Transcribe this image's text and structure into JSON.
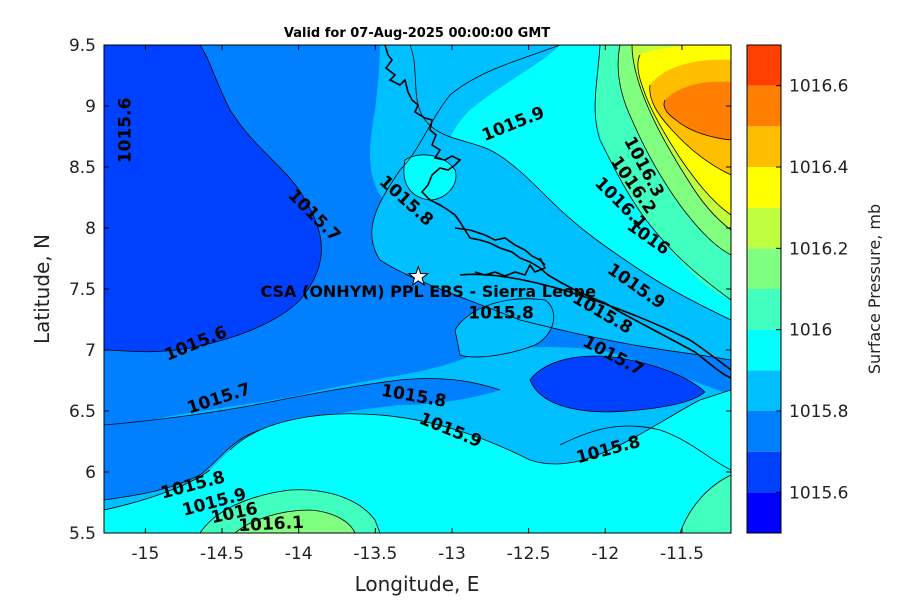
{
  "chart_data": {
    "type": "heatmap",
    "title": "Valid for 07-Aug-2025 00:00:00 GMT",
    "xlabel": "Longitude, E",
    "ylabel": "Latitude, N",
    "xlim": [
      -15.27,
      -11.18
    ],
    "ylim": [
      5.5,
      9.5
    ],
    "xticks": [
      -15,
      -14.5,
      -14,
      -13.5,
      -13,
      -12.5,
      -12,
      -11.5
    ],
    "xtick_labels": [
      "-15",
      "-14.5",
      "-14",
      "-13.5",
      "-13",
      "-12.5",
      "-12",
      "-11.5"
    ],
    "yticks": [
      5.5,
      6,
      6.5,
      7,
      7.5,
      8,
      8.5,
      9,
      9.5
    ],
    "ytick_labels": [
      "5.5",
      "6",
      "6.5",
      "7",
      "7.5",
      "8",
      "8.5",
      "9",
      "9.5"
    ],
    "colorbar": {
      "label": "Surface Pressure, mb",
      "min": 1015.5,
      "max": 1016.7,
      "levels": [
        1015.5,
        1015.6,
        1015.7,
        1015.8,
        1015.9,
        1016.0,
        1016.1,
        1016.2,
        1016.3,
        1016.4,
        1016.5,
        1016.6,
        1016.7
      ],
      "colors": [
        "#0000ff",
        "#0040ff",
        "#0080ff",
        "#00bfff",
        "#00ffff",
        "#40ffbf",
        "#80ff80",
        "#bfff40",
        "#ffff00",
        "#ffbf00",
        "#ff8000",
        "#ff4000"
      ],
      "ticks": [
        1015.6,
        1015.8,
        1016.0,
        1016.2,
        1016.4,
        1016.6
      ],
      "tick_labels": [
        "1015.6",
        "1015.8",
        "1016",
        "1016.2",
        "1016.4",
        "1016.6"
      ]
    },
    "contour_labels": [
      {
        "text": "1015.6",
        "lon": -15.13,
        "lat": 8.8,
        "angle": -90
      },
      {
        "text": "1015.7",
        "lon": -13.9,
        "lat": 8.1,
        "angle": 45
      },
      {
        "text": "1015.8",
        "lon": -13.3,
        "lat": 8.22,
        "angle": 42
      },
      {
        "text": "1015.9",
        "lon": -12.6,
        "lat": 8.85,
        "angle": -22
      },
      {
        "text": "1016.3",
        "lon": -11.75,
        "lat": 8.5,
        "angle": 62
      },
      {
        "text": "1016.2",
        "lon": -11.82,
        "lat": 8.35,
        "angle": 55
      },
      {
        "text": "1016.1",
        "lon": -11.9,
        "lat": 8.2,
        "angle": 45
      },
      {
        "text": "1016",
        "lon": -11.72,
        "lat": 7.92,
        "angle": 35
      },
      {
        "text": "1015.9",
        "lon": -11.8,
        "lat": 7.52,
        "angle": 35
      },
      {
        "text": "1015.8",
        "lon": -12.02,
        "lat": 7.3,
        "angle": 30
      },
      {
        "text": "1015.7",
        "lon": -11.95,
        "lat": 6.95,
        "angle": 28
      },
      {
        "text": "1015.8",
        "lon": -12.68,
        "lat": 7.3,
        "angle": 0
      },
      {
        "text": "1015.6",
        "lon": -14.67,
        "lat": 7.05,
        "angle": -22
      },
      {
        "text": "1015.7",
        "lon": -14.52,
        "lat": 6.6,
        "angle": -18
      },
      {
        "text": "1015.8",
        "lon": -13.25,
        "lat": 6.62,
        "angle": 10
      },
      {
        "text": "1015.9",
        "lon": -13.01,
        "lat": 6.34,
        "angle": 22
      },
      {
        "text": "1015.8",
        "lon": -11.98,
        "lat": 6.18,
        "angle": -15
      },
      {
        "text": "1015.8",
        "lon": -14.69,
        "lat": 5.89,
        "angle": -15
      },
      {
        "text": "1015.9",
        "lon": -14.55,
        "lat": 5.75,
        "angle": -15
      },
      {
        "text": "1016",
        "lon": -14.42,
        "lat": 5.66,
        "angle": -12
      },
      {
        "text": "1016.1",
        "lon": -14.18,
        "lat": 5.57,
        "angle": -3
      }
    ],
    "site": {
      "label": "CSA (ONHYM) PPL EBS  - Sierra Leone",
      "lon": -13.22,
      "lat": 7.6
    },
    "grid": false
  }
}
